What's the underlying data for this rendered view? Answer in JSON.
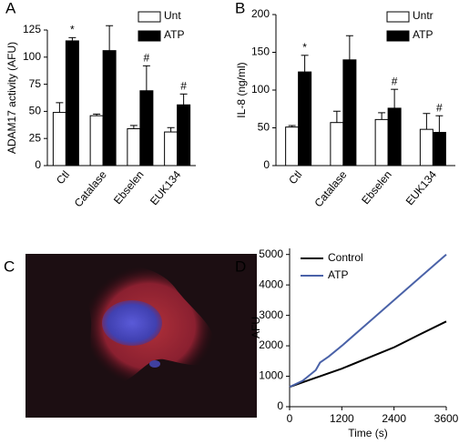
{
  "chart_data": [
    {
      "type": "bar",
      "label": "A",
      "ylabel": "ADAM17 activity (AFU)",
      "categories": [
        "Ctl",
        "Catalase",
        "Ebselen",
        "EUK134"
      ],
      "series": [
        {
          "name": "Unt",
          "color": "#ffffff",
          "values": [
            49,
            46,
            34,
            31
          ],
          "errors": [
            9,
            1.5,
            3,
            4
          ]
        },
        {
          "name": "ATP",
          "color": "#000000",
          "values": [
            115,
            106,
            69,
            56
          ],
          "errors": [
            3,
            23,
            23,
            10
          ]
        }
      ],
      "ylim": [
        0,
        125
      ],
      "yticks": [
        0,
        25,
        50,
        75,
        100,
        125
      ],
      "annotations": [
        {
          "text": "*",
          "category": "Ctl",
          "series": "ATP"
        },
        {
          "text": "#",
          "category": "Ebselen",
          "series": "ATP"
        },
        {
          "text": "#",
          "category": "EUK134",
          "series": "ATP"
        }
      ]
    },
    {
      "type": "bar",
      "label": "B",
      "ylabel": "IL-8 (ng/ml)",
      "categories": [
        "Ctl",
        "Catalase",
        "Ebselen",
        "EUK134"
      ],
      "series": [
        {
          "name": "Untr",
          "color": "#ffffff",
          "values": [
            51,
            57,
            61,
            48
          ],
          "errors": [
            2,
            15,
            9,
            21
          ]
        },
        {
          "name": "ATP",
          "color": "#000000",
          "values": [
            124,
            140,
            76,
            44
          ],
          "errors": [
            22,
            32,
            25,
            22
          ]
        }
      ],
      "ylim": [
        0,
        200
      ],
      "yticks": [
        0,
        50,
        100,
        150,
        200
      ],
      "annotations": [
        {
          "text": "*",
          "category": "Ctl",
          "series": "ATP"
        },
        {
          "text": "#",
          "category": "Ebselen",
          "series": "ATP"
        },
        {
          "text": "#",
          "category": "EUK134",
          "series": "ATP"
        }
      ]
    },
    {
      "type": "line",
      "label": "D",
      "ylabel": "AFU",
      "xlabel": "Time (s)",
      "x": [
        0,
        300,
        600,
        700,
        900,
        1200,
        1800,
        2400,
        3000,
        3600
      ],
      "series": [
        {
          "name": "Control",
          "color": "#000000",
          "values": [
            650,
            800,
            950,
            1000,
            1100,
            1250,
            1600,
            1950,
            2380,
            2800
          ]
        },
        {
          "name": "ATP",
          "color": "#4a62a8",
          "values": [
            650,
            850,
            1200,
            1450,
            1650,
            2000,
            2750,
            3500,
            4250,
            5000
          ]
        }
      ],
      "xlim": [
        0,
        3600
      ],
      "xticks": [
        0,
        1200,
        2400,
        3600
      ],
      "ylim": [
        0,
        5200
      ],
      "yticks": [
        0,
        1000,
        2000,
        3000,
        4000,
        5000
      ]
    }
  ],
  "image_panel": {
    "label": "C"
  }
}
